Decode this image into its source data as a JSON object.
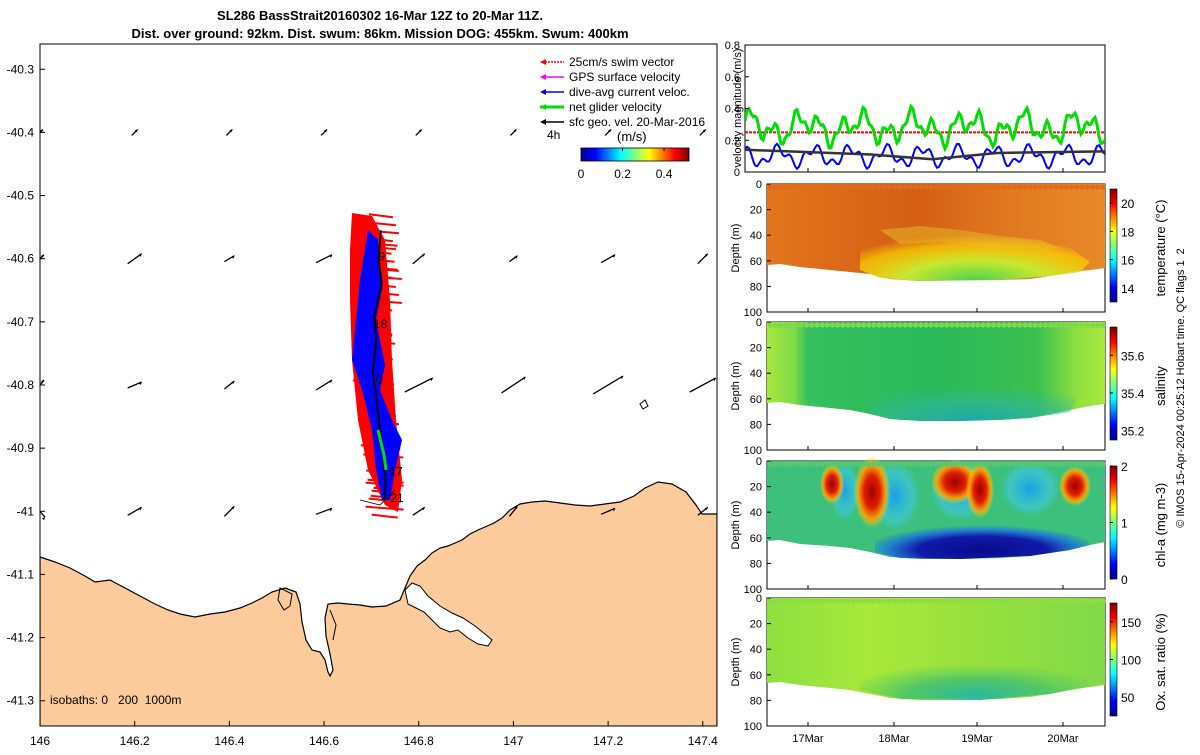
{
  "title_line1": "SL286 BassStrait20160302 16-Mar 12Z to 20-Mar 11Z.",
  "title_line2": "Dist. over ground: 92km. Dist. swum: 86km. Mission DOG: 455km. Swum: 400km",
  "map": {
    "x_ticks": [
      "146",
      "146.2",
      "146.4",
      "146.6",
      "146.8",
      "147",
      "147.2",
      "147.4"
    ],
    "y_ticks": [
      "-40.3",
      "-40.4",
      "-40.5",
      "-40.6",
      "-40.7",
      "-40.8",
      "-40.9",
      "-41",
      "-41.1",
      "-41.2",
      "-41.3"
    ],
    "xlim": [
      146.0,
      147.43
    ],
    "ylim": [
      -41.34,
      -40.26
    ],
    "isobaths_label": "isobaths: 0   200  1000m",
    "legend": [
      {
        "label": "25cm/s swim vector",
        "color": "#ff0000"
      },
      {
        "label": "GPS surface velocity",
        "color": "#ff00ff"
      },
      {
        "label": "dive-avg current veloc.",
        "color": "#0000ff"
      },
      {
        "label": "net glider velocity",
        "color": "#00dd00"
      },
      {
        "label": "sfc geo. vel. 20-Mar-2016",
        "color": "#000000"
      }
    ],
    "legend_extra": "4h",
    "colorbar": {
      "label": "(m/s)",
      "ticks": [
        "0",
        "0.2",
        "0.4"
      ],
      "range": [
        0,
        0.52
      ]
    },
    "day_labels": [
      {
        "text": "9",
        "lon": 146.715,
        "lat": -40.603
      },
      {
        "text": "18",
        "lon": 146.705,
        "lat": -40.71
      },
      {
        "text": "0",
        "lon": 146.71,
        "lat": -40.798
      },
      {
        "text": "17",
        "lon": 146.738,
        "lat": -40.943
      },
      {
        "text": "21",
        "lon": 146.74,
        "lat": -40.985
      }
    ],
    "track": [
      [
        146.72,
        -40.555
      ],
      [
        146.715,
        -40.6
      ],
      [
        146.722,
        -40.64
      ],
      [
        146.706,
        -40.69
      ],
      [
        146.71,
        -40.73
      ],
      [
        146.703,
        -40.78
      ],
      [
        146.71,
        -40.82
      ],
      [
        146.718,
        -40.87
      ],
      [
        146.725,
        -40.91
      ],
      [
        146.73,
        -40.95
      ],
      [
        146.728,
        -40.98
      ]
    ]
  },
  "velocity_panel": {
    "ylabel": "velocity magnitude (m/s)",
    "ylim": [
      0,
      0.8
    ],
    "y_ticks": [
      "0",
      "0.2",
      "0.4",
      "0.6",
      "0.8"
    ],
    "swim_speed": 0.25,
    "sfc_geo": [
      [
        0,
        0.14
      ],
      [
        0.35,
        0.11
      ],
      [
        0.52,
        0.08
      ],
      [
        0.7,
        0.12
      ],
      [
        1,
        0.13
      ]
    ]
  },
  "section_panels": [
    {
      "name": "temperature",
      "cb_label": "temperature (°C)",
      "cb_ticks": [
        "14",
        "16",
        "18",
        "20"
      ],
      "cb_range": [
        13,
        21
      ]
    },
    {
      "name": "salinity",
      "cb_label": "salinity",
      "cb_ticks": [
        "35.2",
        "35.4",
        "35.6"
      ],
      "cb_range": [
        35.15,
        35.75
      ]
    },
    {
      "name": "chl-a",
      "cb_label": "chl-a (mg m-3)",
      "cb_ticks": [
        "0",
        "1",
        "2"
      ],
      "cb_range": [
        0,
        2
      ]
    },
    {
      "name": "oxygen",
      "cb_label": "Ox. sat. ratio (%)",
      "cb_ticks": [
        "50",
        "100",
        "150"
      ],
      "cb_range": [
        25,
        175
      ]
    }
  ],
  "depth_label": "Depth (m)",
  "depth_ticks": [
    "0",
    "20",
    "40",
    "60",
    "80",
    "100"
  ],
  "time_ticks": [
    "17Mar",
    "18Mar",
    "19Mar",
    "20Mar"
  ],
  "footer": "© IMOS 15-Apr-2024 00:25:12 Hobart time. QC flags 1  2",
  "colors": {
    "land": "#fbcb9c",
    "coast": "#000000"
  }
}
